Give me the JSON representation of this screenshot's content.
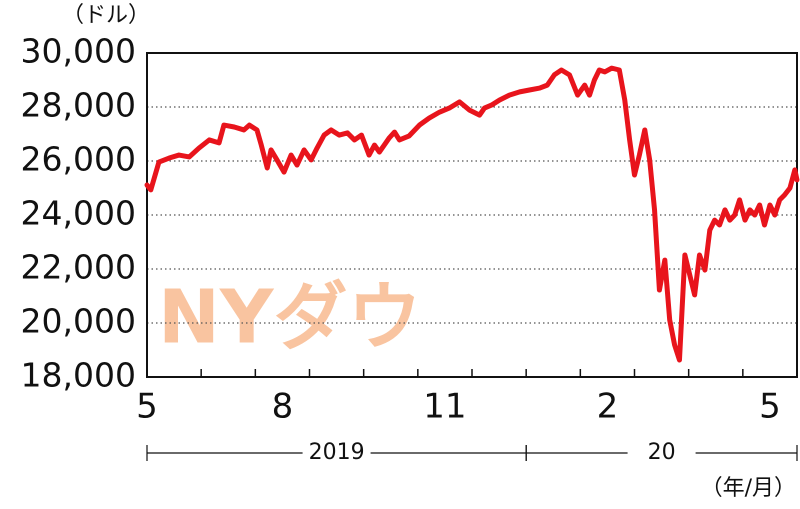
{
  "chart_data": {
    "type": "line",
    "y_unit_label": "（ドル）",
    "x_unit_label": "（年/月）",
    "watermark": "NYダウ",
    "xlim": [
      0,
      12
    ],
    "ylim": [
      18000,
      30000
    ],
    "yticks": [
      {
        "value": 18000,
        "label": "18,000"
      },
      {
        "value": 20000,
        "label": "20,000"
      },
      {
        "value": 22000,
        "label": "22,000"
      },
      {
        "value": 24000,
        "label": "24,000"
      },
      {
        "value": 26000,
        "label": "26,000"
      },
      {
        "value": 28000,
        "label": "28,000"
      },
      {
        "value": 30000,
        "label": "30,000"
      }
    ],
    "xticks": [
      {
        "value": 0,
        "label": "5"
      },
      {
        "value": 2.5,
        "label": "8"
      },
      {
        "value": 5.5,
        "label": "11"
      },
      {
        "value": 8.5,
        "label": "2"
      },
      {
        "value": 11.5,
        "label": "5"
      }
    ],
    "xminorticks": [
      0,
      1,
      2,
      3,
      4,
      5,
      6,
      7,
      8,
      9,
      10,
      11,
      12
    ],
    "xgroups": [
      {
        "label": "2019",
        "range": [
          0,
          7
        ]
      },
      {
        "label": "20",
        "range": [
          7,
          12
        ]
      }
    ],
    "grid": true,
    "x": [
      0,
      0.07,
      0.15,
      0.22,
      0.41,
      0.59,
      0.78,
      0.96,
      1.15,
      1.33,
      1.42,
      1.61,
      1.79,
      1.89,
      2.03,
      2.11,
      2.22,
      2.29,
      2.4,
      2.53,
      2.66,
      2.77,
      2.9,
      3.03,
      3.14,
      3.27,
      3.4,
      3.55,
      3.7,
      3.83,
      3.96,
      4.1,
      4.2,
      4.29,
      4.47,
      4.57,
      4.66,
      4.84,
      5.03,
      5.21,
      5.4,
      5.58,
      5.77,
      5.95,
      6.14,
      6.23,
      6.36,
      6.51,
      6.69,
      6.88,
      7.06,
      7.25,
      7.39,
      7.52,
      7.65,
      7.8,
      7.95,
      8.08,
      8.17,
      8.26,
      8.35,
      8.45,
      8.58,
      8.72,
      8.82,
      8.91,
      9.0,
      9.09,
      9.19,
      9.28,
      9.37,
      9.46,
      9.56,
      9.65,
      9.74,
      9.83,
      9.93,
      10.02,
      10.11,
      10.2,
      10.3,
      10.39,
      10.48,
      10.57,
      10.67,
      10.76,
      10.85,
      10.94,
      11.04,
      11.13,
      11.22,
      11.31,
      11.4,
      11.5,
      11.59,
      11.68,
      11.77,
      11.87,
      11.96,
      12.0
    ],
    "series": [
      {
        "color": "#e8141c",
        "values": [
          25110,
          24930,
          25480,
          25960,
          26110,
          26220,
          26150,
          26480,
          26780,
          26670,
          27330,
          27260,
          27150,
          27330,
          27150,
          26590,
          25740,
          26410,
          26040,
          25590,
          26220,
          25850,
          26410,
          26040,
          26480,
          26960,
          27150,
          26960,
          27040,
          26780,
          26960,
          26220,
          26590,
          26330,
          26850,
          27070,
          26780,
          26930,
          27330,
          27590,
          27810,
          27960,
          28190,
          27890,
          27700,
          27960,
          28070,
          28260,
          28440,
          28560,
          28630,
          28700,
          28810,
          29190,
          29370,
          29190,
          28440,
          28810,
          28440,
          29000,
          29370,
          29300,
          29440,
          29370,
          28260,
          26780,
          25480,
          26220,
          27150,
          26040,
          24190,
          21220,
          22330,
          20110,
          19190,
          18630,
          22520,
          21780,
          21040,
          22520,
          21960,
          23440,
          23810,
          23630,
          24190,
          23810,
          24000,
          24560,
          23810,
          24190,
          24000,
          24370,
          23630,
          24370,
          24000,
          24560,
          24740,
          25000,
          25670,
          25300
        ]
      }
    ]
  }
}
